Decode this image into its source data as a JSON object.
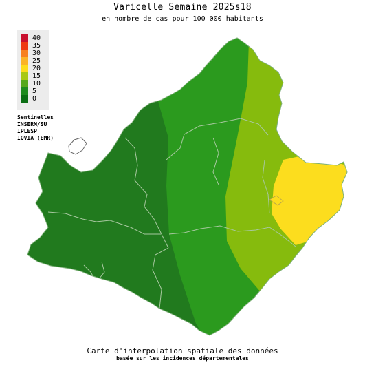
{
  "header": {
    "title": "Varicelle Semaine 2025s18",
    "subtitle": "en nombre de cas pour 100 000 habitants"
  },
  "legend": {
    "items": [
      {
        "label": "40",
        "color": "#c8102e"
      },
      {
        "label": "35",
        "color": "#ee3a14"
      },
      {
        "label": "30",
        "color": "#f7801e"
      },
      {
        "label": "25",
        "color": "#fbb326"
      },
      {
        "label": "20",
        "color": "#fddc1c"
      },
      {
        "label": "15",
        "color": "#a9c813"
      },
      {
        "label": "10",
        "color": "#55a81c"
      },
      {
        "label": "5",
        "color": "#1e8b1e"
      },
      {
        "label": "0",
        "color": "#0b6e14"
      }
    ]
  },
  "sources": {
    "lines": [
      "Sentinelles",
      "INSERM/SU",
      "IPLESP",
      "IQVIA (EMR)"
    ]
  },
  "footer": {
    "line1": "Carte d'interpolation spatiale des données",
    "line2": "basée sur les incidences départementales"
  },
  "colors": {
    "dark_green": "#217a1e",
    "green": "#2b9a1e",
    "yellow_green": "#86bb0d",
    "yellow": "#fcdd1e",
    "borders": "#a8c8a0"
  }
}
